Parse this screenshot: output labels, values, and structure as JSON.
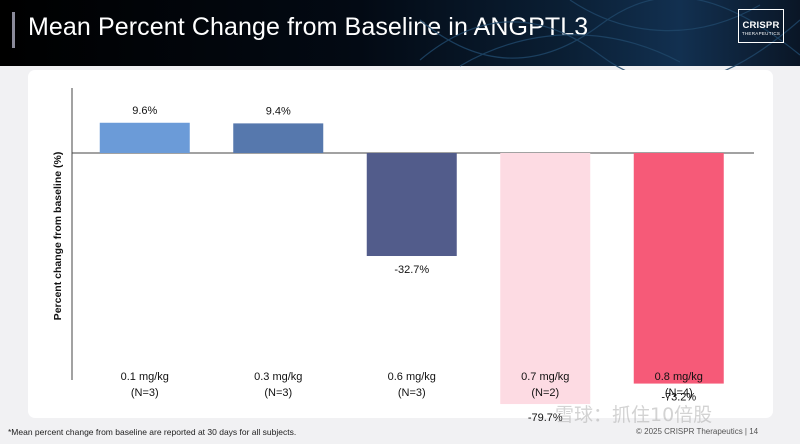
{
  "header": {
    "title": "Mean Percent Change from Baseline in ANGPTL3"
  },
  "logo": {
    "main": "CRISPR",
    "sub": "THERAPEUTICS"
  },
  "chart_data": {
    "type": "bar",
    "title": "Mean Percent Change from Baseline in ANGPTL3",
    "xlabel": "",
    "ylabel": "Percent change from baseline (%)",
    "categories": [
      {
        "dose": "0.1 mg/kg",
        "n": "(N=3)"
      },
      {
        "dose": "0.3 mg/kg",
        "n": "(N=3)"
      },
      {
        "dose": "0.6 mg/kg",
        "n": "(N=3)"
      },
      {
        "dose": "0.7 mg/kg",
        "n": "(N=2)"
      },
      {
        "dose": "0.8 mg/kg",
        "n": "(N=4)"
      }
    ],
    "values": [
      9.6,
      9.4,
      -32.7,
      -79.7,
      -73.2
    ],
    "data_labels": [
      "9.6%",
      "9.4%",
      "-32.7%",
      "-79.7%",
      "-73.2%"
    ],
    "colors": [
      "#6b9bd8",
      "#5678ad",
      "#525c8b",
      "#fddbe3",
      "#f65a78"
    ],
    "ylim": [
      -100,
      30
    ],
    "grid": false
  },
  "footnote": "*Mean percent change from baseline are reported at 30 days for all subjects.",
  "copyright": "© 2025 CRISPR Therapeutics   |   14",
  "watermark": "雪球：抓住10倍股"
}
